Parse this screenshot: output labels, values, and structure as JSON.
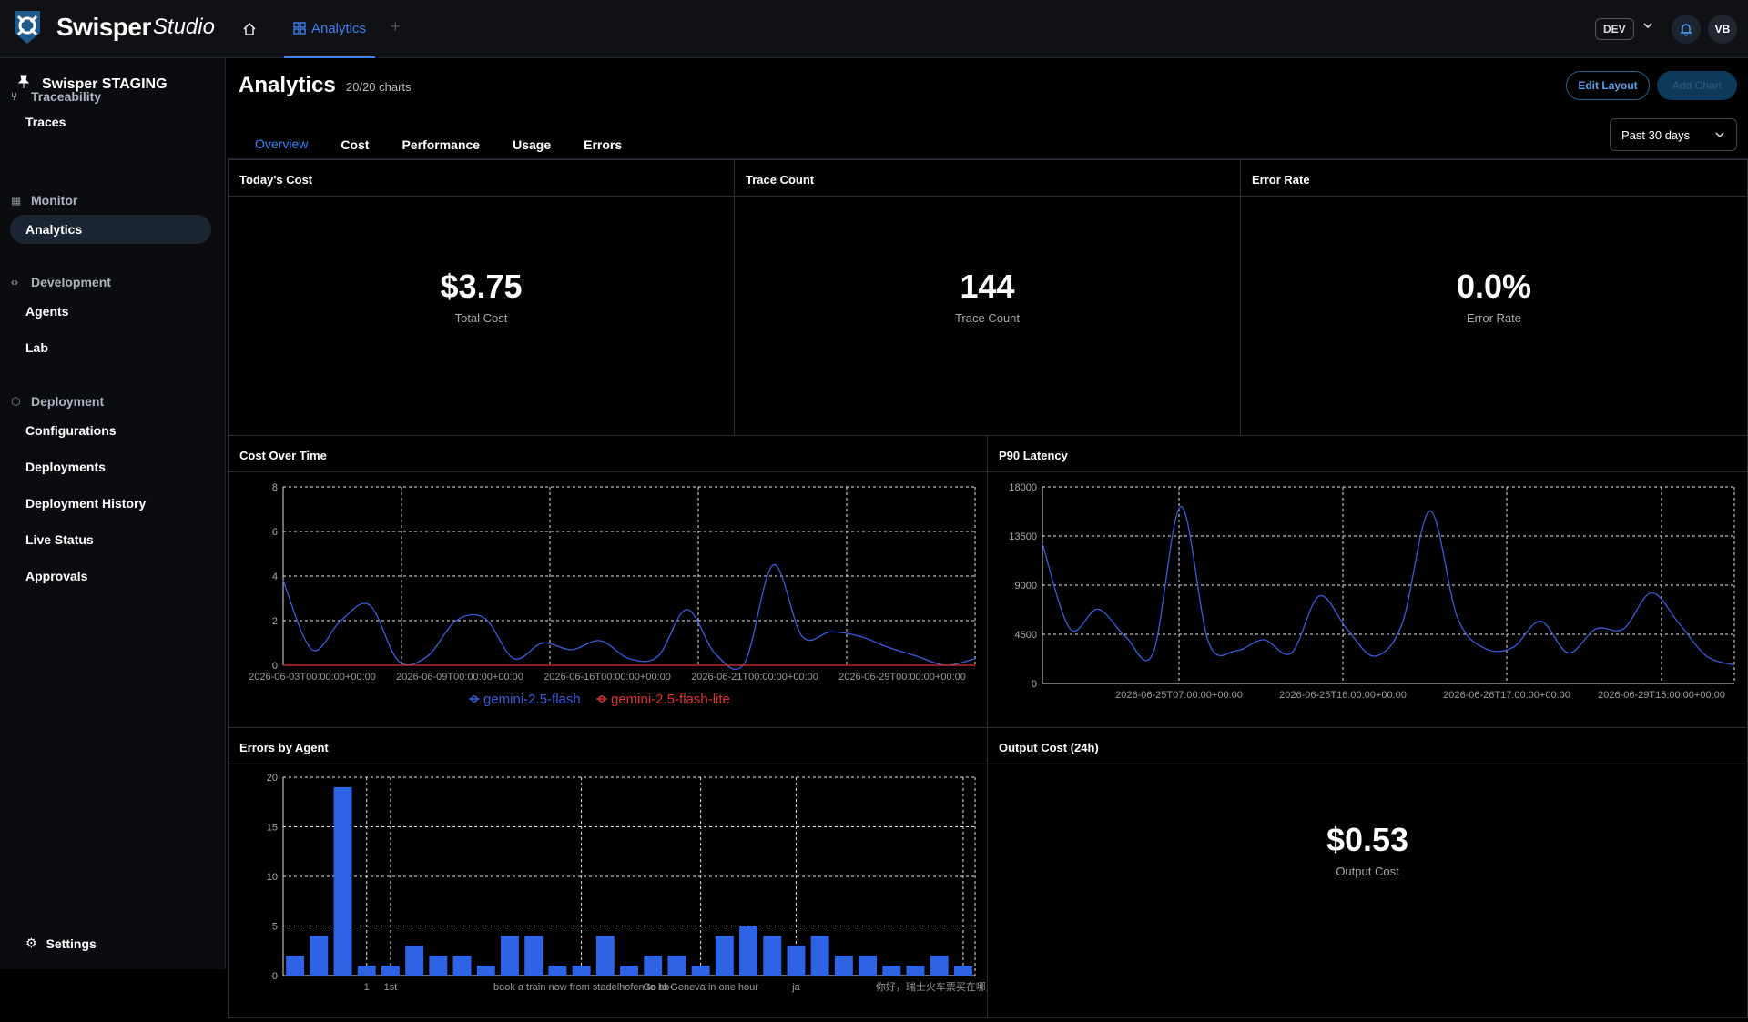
{
  "app": {
    "name": "Swisper",
    "name_sub": "Studio",
    "env": "DEV",
    "avatar_initials": "VB"
  },
  "top_tabs": [
    {
      "label": "Analytics"
    }
  ],
  "sidebar": {
    "org": "Swisper STAGING",
    "groups": [
      {
        "label": "Traceability",
        "icon": "trace-icon",
        "items": [
          "Traces"
        ]
      },
      {
        "label": "Monitor",
        "icon": "grid-icon",
        "items": [
          "Analytics"
        ]
      },
      {
        "label": "Development",
        "icon": "code-icon",
        "items": [
          "Agents",
          "Lab"
        ]
      },
      {
        "label": "Deployment",
        "icon": "box-icon",
        "items": [
          "Configurations",
          "Deployments",
          "Deployment History",
          "Live Status",
          "Approvals"
        ]
      }
    ],
    "settings": "Settings"
  },
  "page": {
    "title": "Analytics",
    "chart_count": "20/20 charts",
    "edit_layout": "Edit Layout",
    "add_chart": "Add Chart",
    "range": "Past 30 days",
    "tabs": [
      "Overview",
      "Cost",
      "Performance",
      "Usage",
      "Errors"
    ]
  },
  "kpis": [
    {
      "title": "Today's Cost",
      "value": "$3.75",
      "label": "Total Cost"
    },
    {
      "title": "Trace Count",
      "value": "144",
      "label": "Trace Count"
    },
    {
      "title": "Error Rate",
      "value": "0.0%",
      "label": "Error Rate"
    }
  ],
  "output_cost": {
    "title": "Output Cost (24h)",
    "value": "$0.53",
    "label": "Output Cost"
  },
  "colors": {
    "accent": "#3b82f6",
    "series_blue": "#3b5bdb",
    "series_red": "#e03131",
    "bar": "#2f63e6"
  },
  "chart_data": [
    {
      "type": "line",
      "title": "Cost Over Time",
      "ylim": [
        0,
        8
      ],
      "yticks": [
        0,
        2,
        4,
        6,
        8
      ],
      "xticks": [
        "2026-06-03T00:00:00+00:00",
        "2026-06-09T00:00:00+00:00",
        "2026-06-16T00:00:00+00:00",
        "2026-06-21T00:00:00+00:00",
        "2026-06-29T00:00:00+00:00"
      ],
      "series": [
        {
          "name": "gemini-2.5-flash",
          "values": [
            3.8,
            0.7,
            2.0,
            2.7,
            0.2,
            0.4,
            2.0,
            2.1,
            0.3,
            1.0,
            0.7,
            1.1,
            0.3,
            0.4,
            2.5,
            0.5,
            0.1,
            4.5,
            1.3,
            1.5,
            1.3,
            0.8,
            0.4,
            0.0,
            0.3
          ]
        },
        {
          "name": "gemini-2.5-flash-lite",
          "values": [
            0,
            0,
            0,
            0,
            0,
            0,
            0,
            0,
            0,
            0,
            0,
            0,
            0,
            0,
            0,
            0,
            0,
            0,
            0,
            0,
            0,
            0,
            0,
            0,
            0
          ]
        }
      ],
      "legend": "bottom"
    },
    {
      "type": "line",
      "title": "P90 Latency",
      "ylim": [
        0,
        18000
      ],
      "yticks": [
        0,
        4500,
        9000,
        13500,
        18000
      ],
      "xticks": [
        "2026-06-25T07:00:00+00:00",
        "2026-06-25T16:00:00+00:00",
        "2026-06-26T17:00:00+00:00",
        "2026-06-29T15:00:00+00:00"
      ],
      "series": [
        {
          "values": [
            12800,
            5000,
            6800,
            4300,
            2800,
            16200,
            3800,
            3000,
            4000,
            2800,
            8000,
            5000,
            2500,
            5500,
            15800,
            6000,
            3200,
            3300,
            5700,
            2800,
            5000,
            5000,
            8300,
            5500,
            2500,
            1700
          ]
        }
      ]
    },
    {
      "type": "bar",
      "title": "Errors by Agent",
      "ylim": [
        0,
        20
      ],
      "yticks": [
        0,
        5,
        10,
        15,
        20
      ],
      "xtick_labels": [
        "1",
        "1st",
        "book a train now from stadelhofen to hb",
        "Go to Geneva in one hour",
        "ja",
        "你好，瑞士火车票买在哪里"
      ],
      "values": [
        2,
        4,
        19,
        1,
        1,
        3,
        2,
        2,
        1,
        4,
        4,
        1,
        1,
        4,
        1,
        2,
        2,
        1,
        4,
        5,
        4,
        3,
        4,
        2,
        2,
        1,
        1,
        2,
        1
      ]
    }
  ]
}
